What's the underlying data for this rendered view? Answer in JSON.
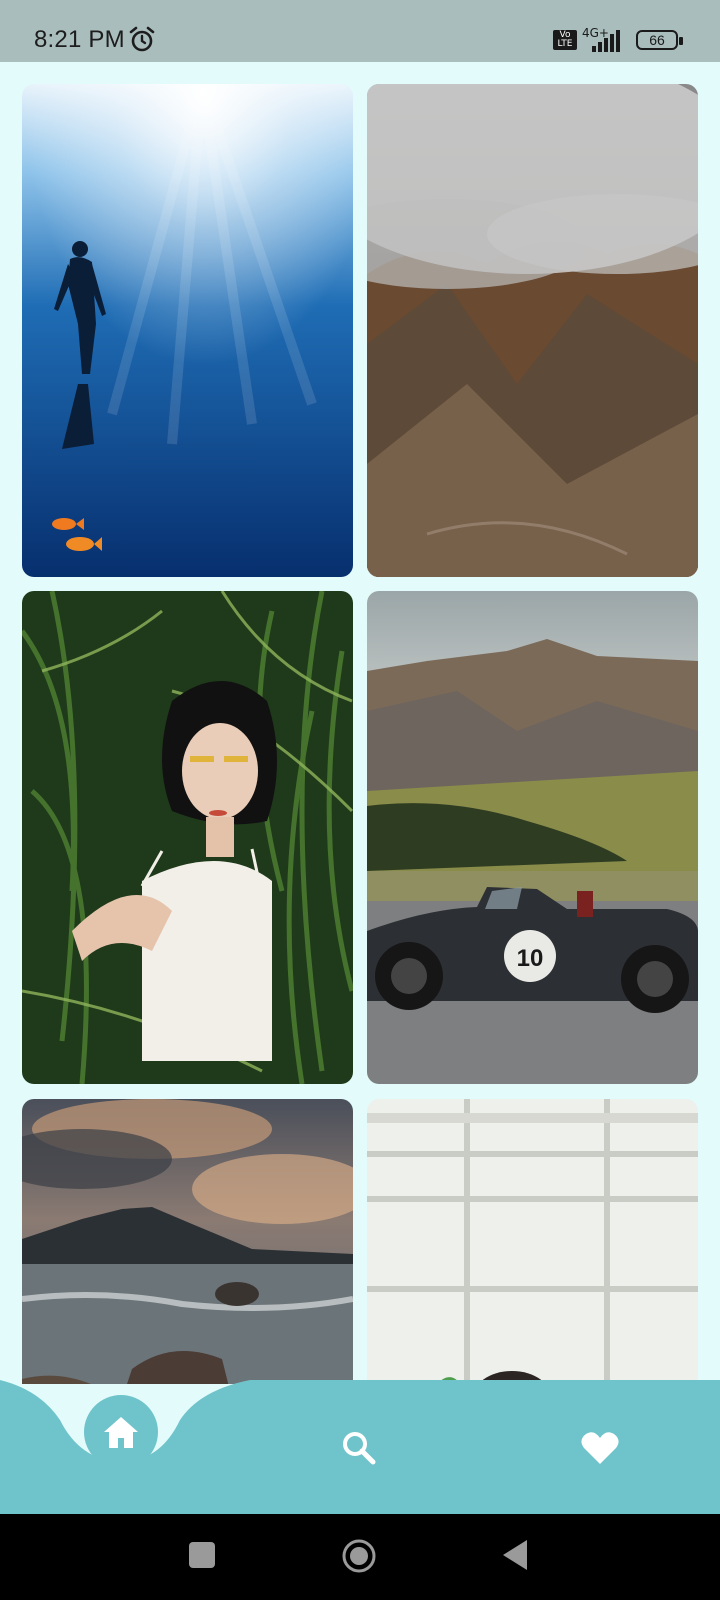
{
  "status_bar": {
    "time": "8:21 PM",
    "volte_label": "Vo LTE",
    "network": "4G+",
    "battery": "66",
    "icons": [
      "alarm-icon",
      "volte-icon",
      "signal-icon",
      "battery-icon"
    ]
  },
  "gallery": {
    "items": [
      {
        "subject": "freediver underwater"
      },
      {
        "subject": "misty mountain slope"
      },
      {
        "subject": "woman in tall grass"
      },
      {
        "subject": "race car by mountains"
      },
      {
        "subject": "stormy coastal sunset"
      },
      {
        "subject": "person by window"
      }
    ]
  },
  "race_number": "10",
  "bottom_nav": {
    "items": [
      {
        "icon": "home-icon",
        "active": true
      },
      {
        "icon": "search-icon",
        "active": false
      },
      {
        "icon": "heart-icon",
        "active": false
      }
    ],
    "colors": {
      "bar": "#6ec4ca",
      "active_bg": "#6ec4ca",
      "icon": "#ffffff"
    }
  },
  "system_nav": {
    "icons": [
      "recents-icon",
      "home-circle-icon",
      "back-icon"
    ]
  },
  "colors": {
    "background": "#e3fbfb",
    "status_bar": "#a9bdbc"
  }
}
